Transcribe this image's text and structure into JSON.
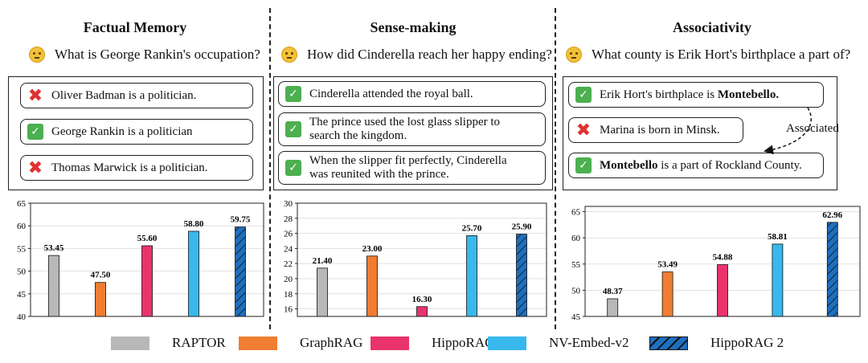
{
  "panels": [
    {
      "title": "Factual Memory",
      "question": "What is George Rankin's occupation?",
      "statements": [
        {
          "mark": "wrong",
          "text": "Oliver Badman is a politician."
        },
        {
          "mark": "correct",
          "text": "George Rankin is a politician"
        },
        {
          "mark": "wrong",
          "text": "Thomas Marwick is a politician."
        }
      ]
    },
    {
      "title": "Sense-making",
      "question": "How did Cinderella reach her happy ending?",
      "statements": [
        {
          "mark": "correct",
          "text": "Cinderella attended the royal ball."
        },
        {
          "mark": "correct",
          "line1": "The prince used the lost glass slipper to",
          "line2": "search the kingdom."
        },
        {
          "mark": "correct",
          "line1": "When the slipper fit perfectly, Cinderella",
          "line2": "was reunited with the prince."
        }
      ]
    },
    {
      "title": "Associativity",
      "question": "What county is Erik Hort's birthplace a part of?",
      "statements": [
        {
          "mark": "correct",
          "text_pre": "Erik Hort's birthplace is ",
          "text_bold": "Montebello."
        },
        {
          "mark": "wrong",
          "text": "Marina is born in Minsk."
        },
        {
          "mark": "correct",
          "text_bold": "Montebello",
          "text_post": " is a part of Rockland County."
        }
      ],
      "arrow_label": "Associated"
    }
  ],
  "chart_data": [
    {
      "type": "bar",
      "title": "Factual Memory",
      "categories": [
        "RAPTOR",
        "GraphRAG",
        "HippoRAG",
        "NV-Embed-v2",
        "HippoRAG 2"
      ],
      "values": [
        53.45,
        47.5,
        55.6,
        58.8,
        59.75
      ],
      "value_labels": [
        "53.45",
        "47.50",
        "55.60",
        "58.80",
        "59.75"
      ],
      "ylim": [
        40,
        65
      ],
      "yticks": [
        "40",
        "45",
        "50",
        "55",
        "60",
        "65"
      ]
    },
    {
      "type": "bar",
      "title": "Sense-making",
      "categories": [
        "RAPTOR",
        "GraphRAG",
        "HippoRAG",
        "NV-Embed-v2",
        "HippoRAG 2"
      ],
      "values": [
        21.4,
        23.0,
        16.3,
        25.7,
        25.9
      ],
      "value_labels": [
        "21.40",
        "23.00",
        "16.30",
        "25.70",
        "25.90"
      ],
      "ylim": [
        15,
        30
      ],
      "yticks": [
        "16",
        "18",
        "20",
        "22",
        "24",
        "26",
        "28",
        "30"
      ]
    },
    {
      "type": "bar",
      "title": "Associativity",
      "categories": [
        "RAPTOR",
        "GraphRAG",
        "HippoRAG",
        "NV-Embed-v2",
        "HippoRAG 2"
      ],
      "values": [
        48.37,
        53.49,
        54.88,
        58.81,
        62.96
      ],
      "value_labels": [
        "48.37",
        "53.49",
        "54.88",
        "58.81",
        "62.96"
      ],
      "ylim": [
        45,
        66
      ],
      "yticks": [
        "45",
        "50",
        "55",
        "60",
        "65"
      ]
    }
  ],
  "legend": [
    {
      "label": "RAPTOR",
      "color": "#b8b8b8",
      "hatch": false
    },
    {
      "label": "GraphRAG",
      "color": "#ef7d32",
      "hatch": false
    },
    {
      "label": "HippoRAG",
      "color": "#e8336d",
      "hatch": false
    },
    {
      "label": "NV-Embed-v2",
      "color": "#38b8ec",
      "hatch": false
    },
    {
      "label": "HippoRAG 2",
      "color": "#1f6fbf",
      "hatch": true
    }
  ]
}
